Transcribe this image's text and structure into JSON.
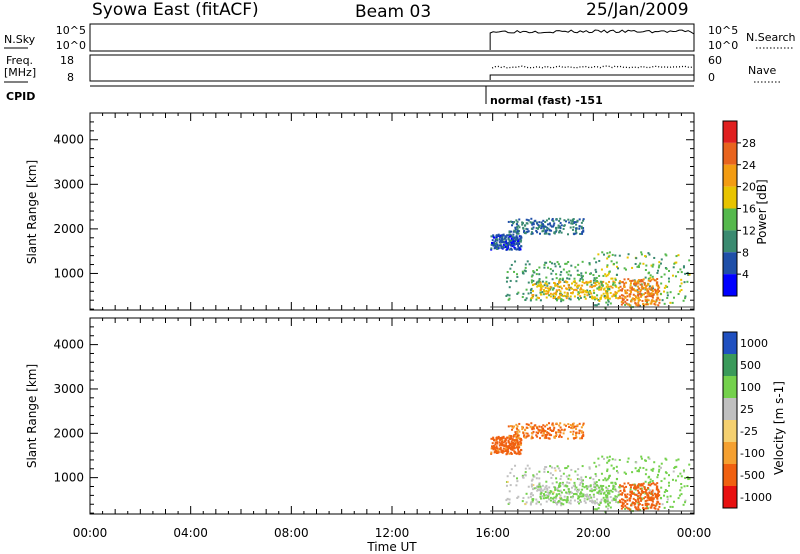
{
  "header": {
    "station": "Syowa East (fitACF)",
    "beam": "Beam 03",
    "date": "25/Jan/2009"
  },
  "summary_panels": {
    "nsky_label": "N.Sky",
    "nsky_ticks": [
      "10^5",
      "10^0"
    ],
    "nsearch_label": "N.Search",
    "nsearch_ticks": [
      "10^5",
      "10^0"
    ],
    "freq_label_line1": "Freq.",
    "freq_label_line2": "[MHz]",
    "freq_ticks": [
      "18",
      "8"
    ],
    "nave_label": "Nave",
    "nave_ticks": [
      "60",
      "0"
    ],
    "cpid_label": "CPID",
    "cpid_value": "normal (fast) -151"
  },
  "colors": {
    "power_scale": [
      "#0000ff",
      "#1f4fa8",
      "#3a8a70",
      "#55b84c",
      "#e8c400",
      "#f39c12",
      "#e8641e",
      "#e02020"
    ],
    "velocity_scale": [
      "#e81010",
      "#f06010",
      "#f5a030",
      "#f5d070",
      "#c0c0c0",
      "#74d14c",
      "#3a9a5a",
      "#2050c0"
    ]
  },
  "chart_data": [
    {
      "type": "heatmap",
      "title": "",
      "ylabel": "Slant Range [km]",
      "xlabel": "",
      "colorbar_label": "Power [dB]",
      "colorbar_ticks": [
        "28",
        "24",
        "20",
        "16",
        "12",
        "8",
        "4"
      ],
      "x_ticks": [
        "00:00",
        "04:00",
        "08:00",
        "12:00",
        "16:00",
        "20:00",
        "00:00"
      ],
      "y_ticks": [
        "4000",
        "3000",
        "2000",
        "1000"
      ],
      "xlim": [
        0,
        24
      ],
      "ylim": [
        180,
        4600
      ],
      "data_start_hour": 15.9,
      "echo_regions": [
        {
          "t0": 15.9,
          "t1": 17.1,
          "r0": 1550,
          "r1": 1900,
          "value_db": 6
        },
        {
          "t0": 16.6,
          "t1": 19.6,
          "r0": 1900,
          "r1": 2250,
          "value_db": 8
        },
        {
          "t0": 16.5,
          "t1": 20.2,
          "r0": 400,
          "r1": 1300,
          "value_db": 12
        },
        {
          "t0": 17.5,
          "t1": 21.0,
          "r0": 450,
          "r1": 850,
          "value_db": 20
        },
        {
          "t0": 20.0,
          "t1": 23.8,
          "r0": 250,
          "r1": 1500,
          "value_db": 14
        },
        {
          "t0": 21.0,
          "t1": 22.6,
          "r0": 300,
          "r1": 900,
          "value_db": 24
        }
      ]
    },
    {
      "type": "heatmap",
      "title": "",
      "ylabel": "Slant Range [km]",
      "xlabel": "Time UT",
      "colorbar_label": "Velocity [m s-1]",
      "colorbar_ticks": [
        "1000",
        "500",
        "100",
        "25",
        "-25",
        "-100",
        "-500",
        "-1000"
      ],
      "x_ticks": [
        "00:00",
        "04:00",
        "08:00",
        "12:00",
        "16:00",
        "20:00",
        "00:00"
      ],
      "y_ticks": [
        "4000",
        "3000",
        "2000",
        "1000"
      ],
      "xlim": [
        0,
        24
      ],
      "ylim": [
        180,
        4600
      ],
      "data_start_hour": 15.9,
      "echo_regions": [
        {
          "t0": 15.9,
          "t1": 17.1,
          "r0": 1550,
          "r1": 1950,
          "value_ms": -150
        },
        {
          "t0": 16.6,
          "t1": 19.6,
          "r0": 1900,
          "r1": 2250,
          "value_ms": -120
        },
        {
          "t0": 16.5,
          "t1": 20.2,
          "r0": 400,
          "r1": 1300,
          "value_ms": 80
        },
        {
          "t0": 17.5,
          "t1": 21.0,
          "r0": 450,
          "r1": 850,
          "value_ms": 120
        },
        {
          "t0": 20.0,
          "t1": 23.8,
          "r0": 250,
          "r1": 1500,
          "value_ms": 150
        },
        {
          "t0": 21.0,
          "t1": 22.6,
          "r0": 300,
          "r1": 900,
          "value_ms": -300
        }
      ]
    }
  ]
}
